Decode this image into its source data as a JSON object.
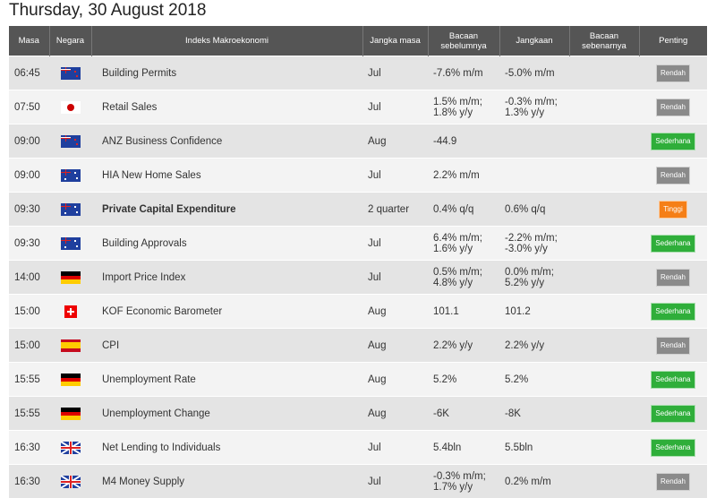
{
  "title": "Thursday, 30 August 2018",
  "headers": [
    "Masa",
    "Negara",
    "Indeks Makroekonomi",
    "Jangka masa",
    "Bacaan sebelumnya",
    "Jangkaan",
    "Bacaan sebenarnya",
    "Penting"
  ],
  "colors": {
    "Rendah": "#8a8a8a",
    "Sederhana": "#2fae3a",
    "Tinggi": "#f57f17"
  },
  "rows": [
    {
      "time": "06:45",
      "country": "nz",
      "name": "Building Permits",
      "period": "Jul",
      "prev": "-7.6% m/m",
      "exp": "-5.0% m/m",
      "actual": "",
      "imp": "Rendah"
    },
    {
      "time": "07:50",
      "country": "jp",
      "name": "Retail Sales",
      "period": "Jul",
      "prev": "1.5% m/m;\n1.8% y/y",
      "exp": "-0.3% m/m;\n1.3% y/y",
      "actual": "",
      "imp": "Rendah"
    },
    {
      "time": "09:00",
      "country": "nz",
      "name": "ANZ Business Confidence",
      "period": "Aug",
      "prev": "-44.9",
      "exp": "",
      "actual": "",
      "imp": "Sederhana"
    },
    {
      "time": "09:00",
      "country": "au",
      "name": "HIA New Home Sales",
      "period": "Jul",
      "prev": "2.2% m/m",
      "exp": "",
      "actual": "",
      "imp": "Rendah"
    },
    {
      "time": "09:30",
      "country": "au",
      "name": "Private Capital Expenditure",
      "bold": true,
      "period": "2 quarter",
      "prev": "0.4% q/q",
      "exp": "0.6% q/q",
      "actual": "",
      "imp": "Tinggi"
    },
    {
      "time": "09:30",
      "country": "au",
      "name": "Building Approvals",
      "period": "Jul",
      "prev": "6.4% m/m;\n1.6% y/y",
      "exp": "-2.2% m/m;\n-3.0% y/y",
      "actual": "",
      "imp": "Sederhana"
    },
    {
      "time": "14:00",
      "country": "de",
      "name": "Import Price Index",
      "period": "Jul",
      "prev": "0.5% m/m;\n4.8% y/y",
      "exp": "0.0% m/m;\n5.2% y/y",
      "actual": "",
      "imp": "Rendah"
    },
    {
      "time": "15:00",
      "country": "ch",
      "name": "KOF Economic Barometer",
      "period": "Aug",
      "prev": "101.1",
      "exp": "101.2",
      "actual": "",
      "imp": "Sederhana"
    },
    {
      "time": "15:00",
      "country": "es",
      "name": "CPI",
      "period": "Aug",
      "prev": "2.2% y/y",
      "exp": "2.2% y/y",
      "actual": "",
      "imp": "Rendah"
    },
    {
      "time": "15:55",
      "country": "de",
      "name": "Unemployment Rate",
      "period": "Aug",
      "prev": "5.2%",
      "exp": "5.2%",
      "actual": "",
      "imp": "Sederhana"
    },
    {
      "time": "15:55",
      "country": "de",
      "name": "Unemployment Change",
      "period": "Aug",
      "prev": "-6K",
      "exp": "-8K",
      "actual": "",
      "imp": "Sederhana"
    },
    {
      "time": "16:30",
      "country": "gb",
      "name": "Net Lending to Individuals",
      "period": "Jul",
      "prev": "5.4bln",
      "exp": "5.5bln",
      "actual": "",
      "imp": "Sederhana"
    },
    {
      "time": "16:30",
      "country": "gb",
      "name": "M4 Money Supply",
      "period": "Jul",
      "prev": "-0.3% m/m;\n1.7% y/y",
      "exp": "0.2% m/m",
      "actual": "",
      "imp": "Rendah"
    }
  ]
}
